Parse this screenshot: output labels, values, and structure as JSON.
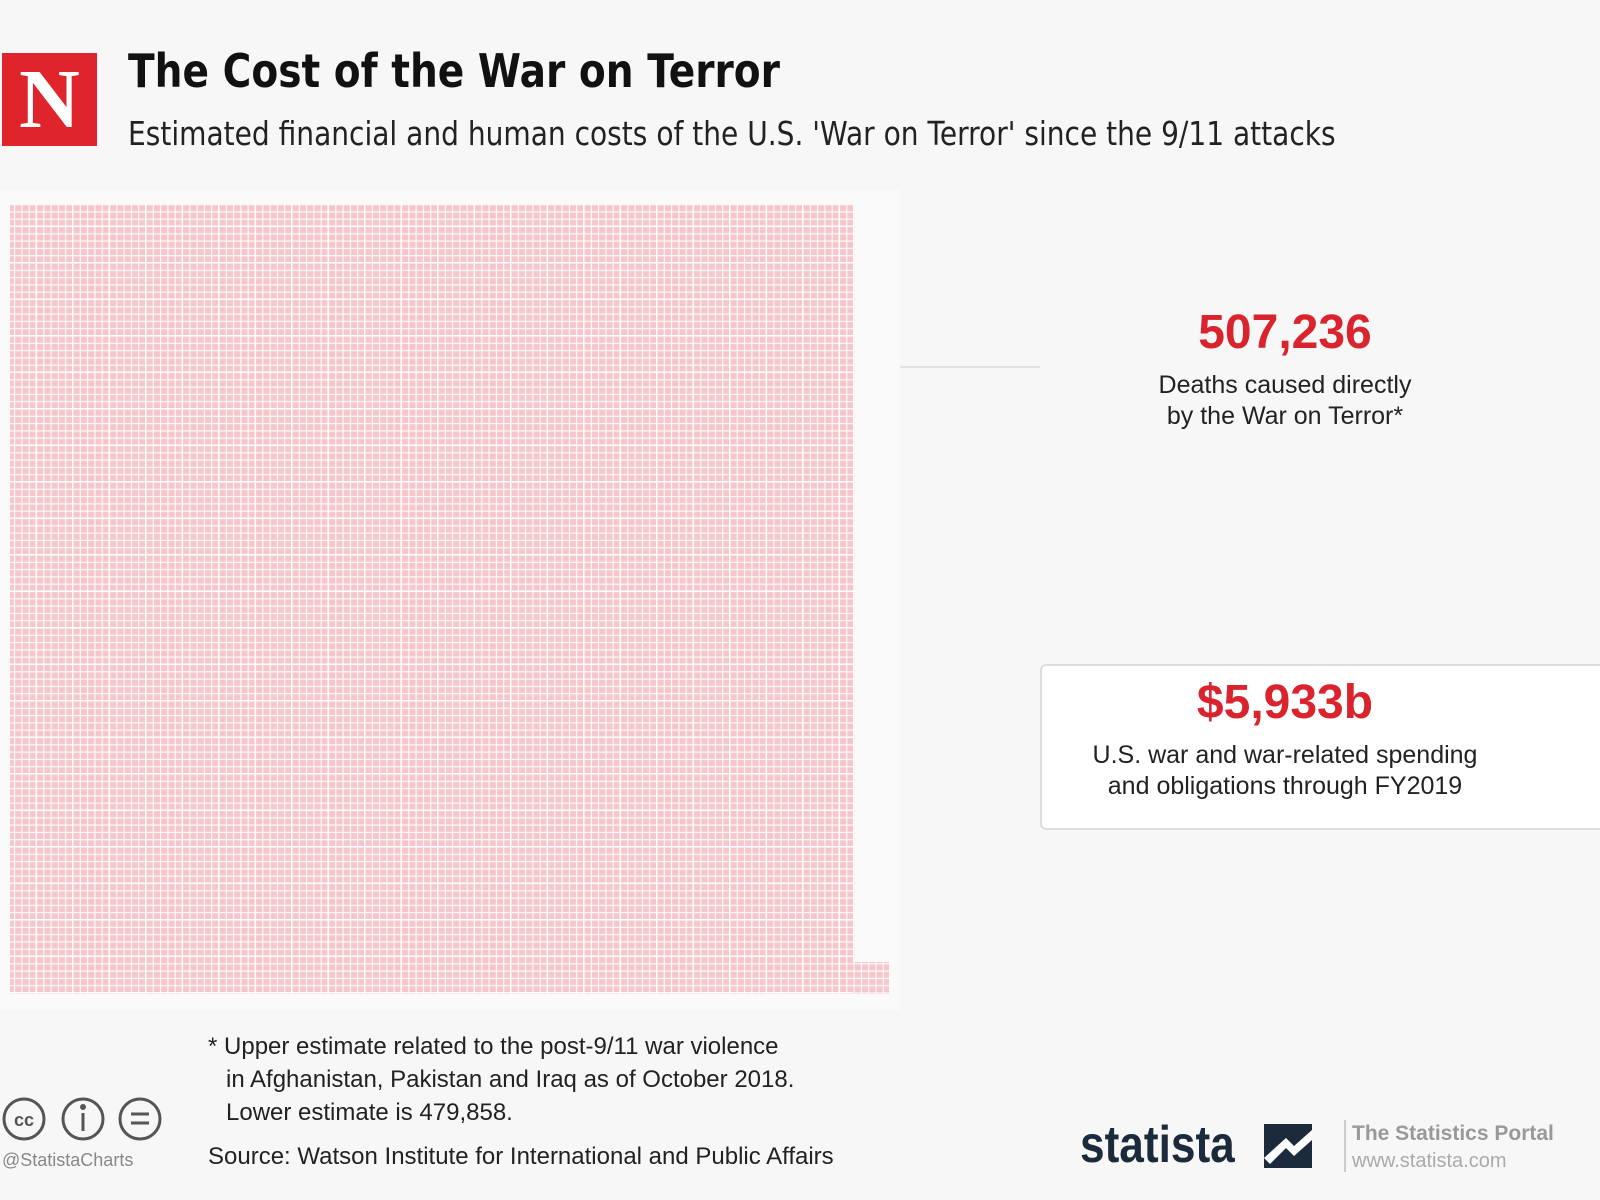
{
  "header": {
    "logo": "N",
    "title": "The Cost of the War on Terror",
    "subtitle": "Estimated financial and human costs of the U.S. 'War on Terror' since the 9/11 attacks"
  },
  "stats": [
    {
      "value": "507,236",
      "label": [
        "Deaths caused directly",
        "by the War on Terror*"
      ]
    },
    {
      "value": "$5,933b",
      "label": [
        "U.S. war and war-related spending",
        "and obligations through FY2019"
      ]
    }
  ],
  "footnote": [
    "* Upper estimate related to the post-9/11 war violence",
    "in Afghanistan, Pakistan and Iraq as of October 2018.",
    "Lower estimate is 479,858."
  ],
  "source": "Source: Watson Institute for International and Public Affairs",
  "handle": "@StatistaCharts",
  "brand": {
    "name": "statista",
    "tagline": "The Statistics Portal",
    "url": "www.statista.com"
  }
}
